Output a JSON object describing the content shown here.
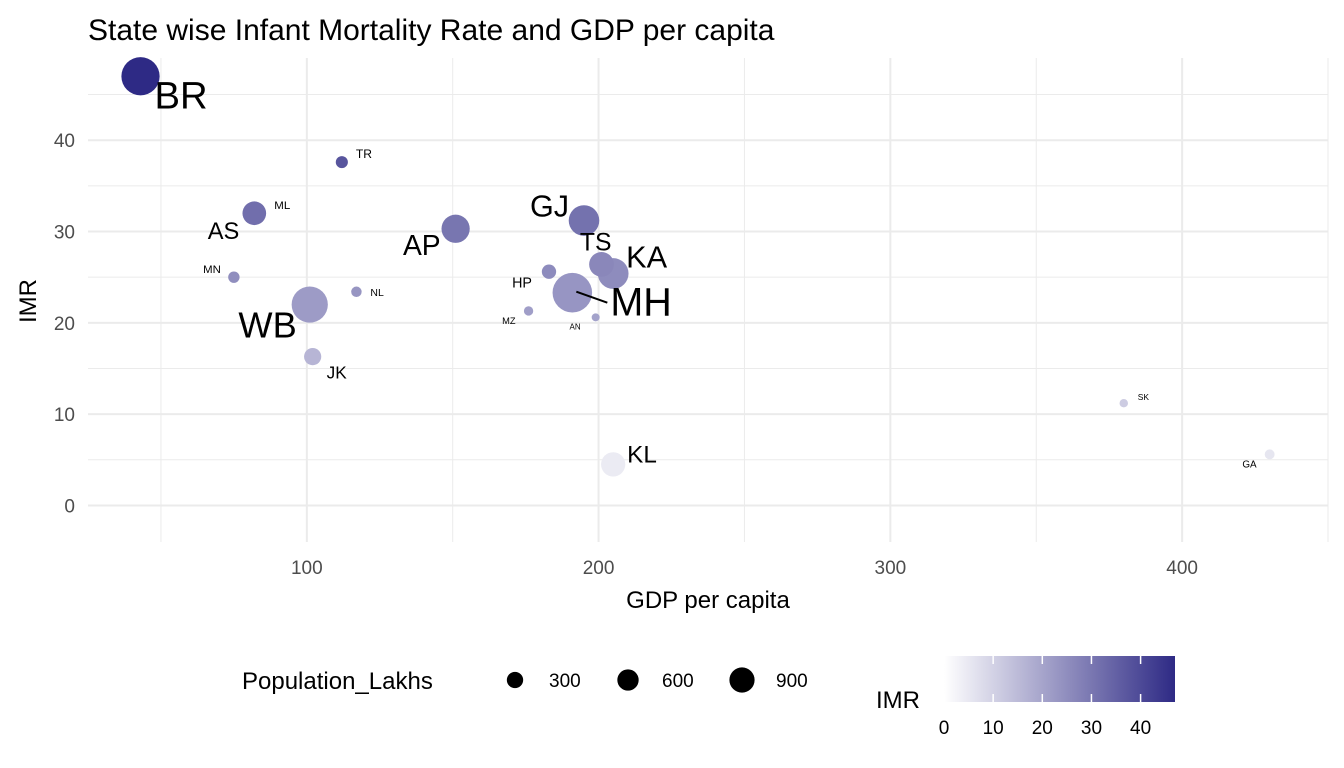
{
  "chart_data": {
    "type": "scatter",
    "title": "State wise Infant Mortality Rate and GDP per capita",
    "xlabel": "GDP per capita",
    "ylabel": "IMR",
    "xlim": [
      25,
      450
    ],
    "ylim": [
      -4,
      49
    ],
    "xticks": [
      100,
      200,
      300,
      400
    ],
    "yticks": [
      0,
      10,
      20,
      30,
      40
    ],
    "grid": true,
    "points": [
      {
        "label": "BR",
        "x": 43,
        "y": 47,
        "population": 1040
      },
      {
        "label": "TR",
        "x": 112,
        "y": 37.6,
        "population": 37
      },
      {
        "label": "ML",
        "x": 82,
        "y": 32,
        "population": 30
      },
      {
        "label": "AS",
        "x": 82,
        "y": 32,
        "population": 312
      },
      {
        "label": "AP",
        "x": 151,
        "y": 30.3,
        "population": 495
      },
      {
        "label": "GJ",
        "x": 195,
        "y": 31.2,
        "population": 604
      },
      {
        "label": "MN",
        "x": 75,
        "y": 25,
        "population": 29
      },
      {
        "label": "NL",
        "x": 117,
        "y": 23.4,
        "population": 20
      },
      {
        "label": "WB",
        "x": 101,
        "y": 22,
        "population": 913
      },
      {
        "label": "TS",
        "x": 201,
        "y": 26.4,
        "population": 351
      },
      {
        "label": "KA",
        "x": 205,
        "y": 25.4,
        "population": 611
      },
      {
        "label": "HP",
        "x": 183,
        "y": 25.6,
        "population": 69
      },
      {
        "label": "MH",
        "x": 191,
        "y": 23.3,
        "population": 1124
      },
      {
        "label": "MZ",
        "x": 176,
        "y": 21.3,
        "population": 11
      },
      {
        "label": "AN",
        "x": 199,
        "y": 20.6,
        "population": 4
      },
      {
        "label": "JK",
        "x": 102,
        "y": 16.3,
        "population": 125
      },
      {
        "label": "KL",
        "x": 205,
        "y": 4.5,
        "population": 334
      },
      {
        "label": "SK",
        "x": 380,
        "y": 11.2,
        "population": 6
      },
      {
        "label": "GA",
        "x": 430,
        "y": 5.6,
        "population": 15
      }
    ],
    "size_legend": {
      "title": "Population_Lakhs",
      "values": [
        300,
        600,
        900
      ]
    },
    "color_legend": {
      "title": "IMR",
      "ticks": [
        0,
        10,
        20,
        30,
        40
      ],
      "range": [
        0,
        47
      ],
      "low_color": "#ffffff",
      "high_color": "#2e2a85"
    },
    "legend_position": "bottom"
  }
}
